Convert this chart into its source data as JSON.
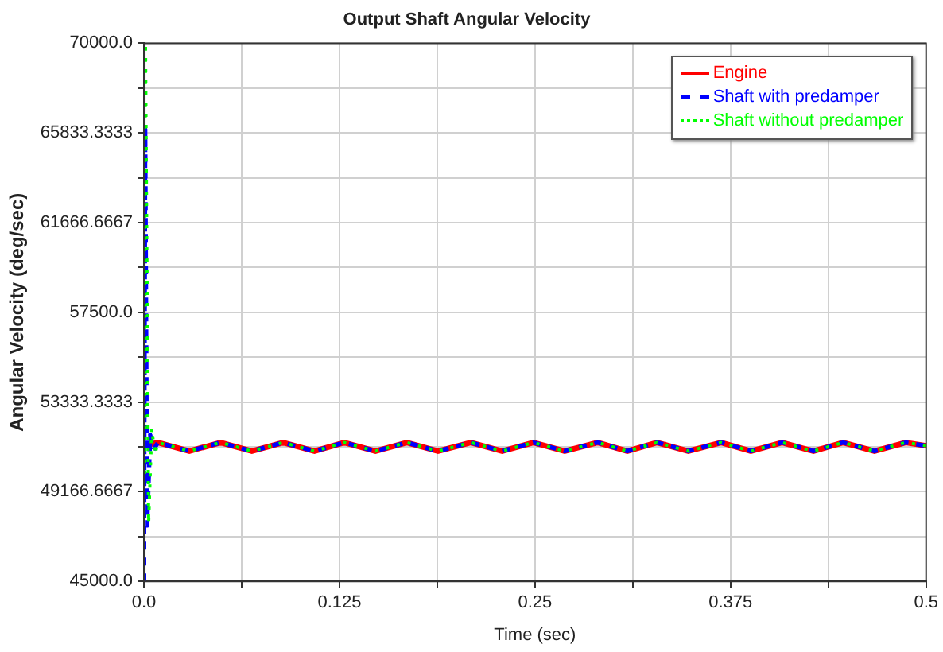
{
  "chart_data": {
    "type": "line",
    "title": "Output Shaft Angular Velocity",
    "xlabel": "Time (sec)",
    "ylabel": "Angular Velocity (deg/sec)",
    "xlim": [
      0,
      0.5
    ],
    "xticks": [
      {
        "value": 0,
        "label": "0.0"
      },
      {
        "value": 0.0625,
        "label": null
      },
      0.125,
      {
        "value": 0.1875,
        "label": null
      },
      0.25,
      {
        "value": 0.3125,
        "label": null
      },
      0.375,
      {
        "value": 0.4375,
        "label": null
      },
      0.5
    ],
    "ylim": [
      45000,
      70000
    ],
    "yticks": [
      {
        "value": 45000,
        "label": "45000.0"
      },
      {
        "value": 47083.3333,
        "label": null
      },
      {
        "value": 49166.6667,
        "label": "49166.6667"
      },
      {
        "value": 51250,
        "label": null
      },
      {
        "value": 53333.3333,
        "label": "53333.3333"
      },
      {
        "value": 55416.6667,
        "label": null
      },
      {
        "value": 57500,
        "label": "57500.0"
      },
      {
        "value": 59583.3333,
        "label": null
      },
      {
        "value": 61666.6667,
        "label": "61666.6667"
      },
      {
        "value": 63750,
        "label": null
      },
      {
        "value": 65833.3333,
        "label": "65833.3333"
      },
      {
        "value": 67916.6667,
        "label": null
      },
      {
        "value": 70000,
        "label": "70000.0"
      }
    ],
    "grid": true,
    "legend": "top right",
    "marker": "none",
    "series": [
      {
        "name": "Engine",
        "color": "#ff0000",
        "line_style": "solid",
        "x": [
          0,
          0.009,
          0.029,
          0.049,
          0.069,
          0.089,
          0.109,
          0.128,
          0.148,
          0.168,
          0.188,
          0.209,
          0.229,
          0.249,
          0.269,
          0.29,
          0.309,
          0.328,
          0.348,
          0.369,
          0.388,
          0.408,
          0.428,
          0.447,
          0.467,
          0.487,
          0.5
        ],
        "values": [
          51300,
          51450,
          51050,
          51450,
          51050,
          51450,
          51050,
          51450,
          51050,
          51450,
          51050,
          51450,
          51050,
          51450,
          51050,
          51450,
          51050,
          51450,
          51050,
          51450,
          51050,
          51450,
          51050,
          51450,
          51050,
          51450,
          51300
        ]
      },
      {
        "name": "Shaft with predamper",
        "color": "#0000ff",
        "line_style": "dashed",
        "x": [
          0,
          0.0008,
          0.002,
          0.004,
          0.006,
          0.009,
          0.029,
          0.049,
          0.069,
          0.089,
          0.109,
          0.128,
          0.148,
          0.168,
          0.188,
          0.209,
          0.229,
          0.249,
          0.269,
          0.29,
          0.309,
          0.328,
          0.348,
          0.369,
          0.388,
          0.408,
          0.428,
          0.447,
          0.467,
          0.487,
          0.5
        ],
        "values": [
          45000,
          66000,
          47600,
          51800,
          51100,
          51450,
          51050,
          51450,
          51050,
          51450,
          51050,
          51450,
          51050,
          51450,
          51050,
          51450,
          51050,
          51450,
          51050,
          51450,
          51050,
          51450,
          51050,
          51450,
          51050,
          51450,
          51050,
          51450,
          51050,
          51450,
          51300
        ]
      },
      {
        "name": "Shaft without predamper",
        "color": "#00ff00",
        "line_style": "dotted",
        "x": [
          0,
          0.001,
          0.003,
          0.005,
          0.007,
          0.009,
          0.029,
          0.049,
          0.069,
          0.089,
          0.109,
          0.128,
          0.148,
          0.168,
          0.188,
          0.209,
          0.229,
          0.249,
          0.269,
          0.29,
          0.309,
          0.328,
          0.348,
          0.369,
          0.388,
          0.408,
          0.428,
          0.447,
          0.467,
          0.487,
          0.5
        ],
        "values": [
          50000,
          70000,
          47700,
          52100,
          50900,
          51450,
          51050,
          51450,
          51050,
          51450,
          51050,
          51450,
          51050,
          51450,
          51050,
          51450,
          51050,
          51450,
          51050,
          51450,
          51050,
          51450,
          51050,
          51450,
          51050,
          51450,
          51050,
          51450,
          51050,
          51450,
          51300
        ]
      }
    ]
  }
}
